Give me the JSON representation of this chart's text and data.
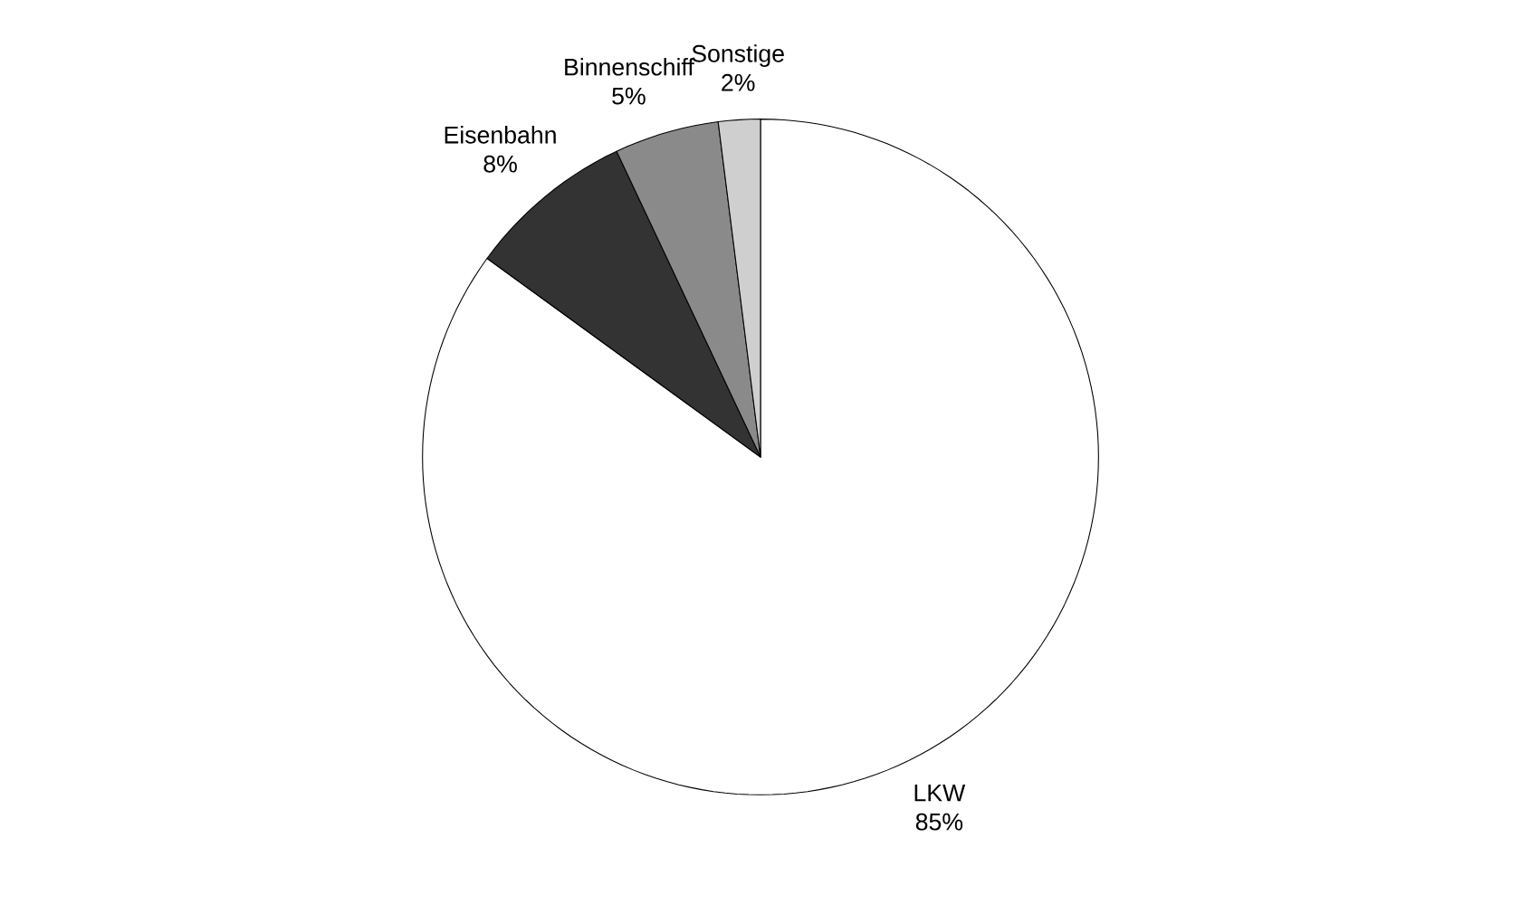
{
  "chart_data": {
    "type": "pie",
    "categories": [
      "LKW",
      "Eisenbahn",
      "Binnenschiff",
      "Sonstige"
    ],
    "values": [
      85,
      8,
      5,
      2
    ],
    "value_labels": [
      "85%",
      "8%",
      "5%",
      "2%"
    ],
    "colors": [
      "#ffffff",
      "#333333",
      "#8a8a8a",
      "#cfcfcf"
    ]
  }
}
